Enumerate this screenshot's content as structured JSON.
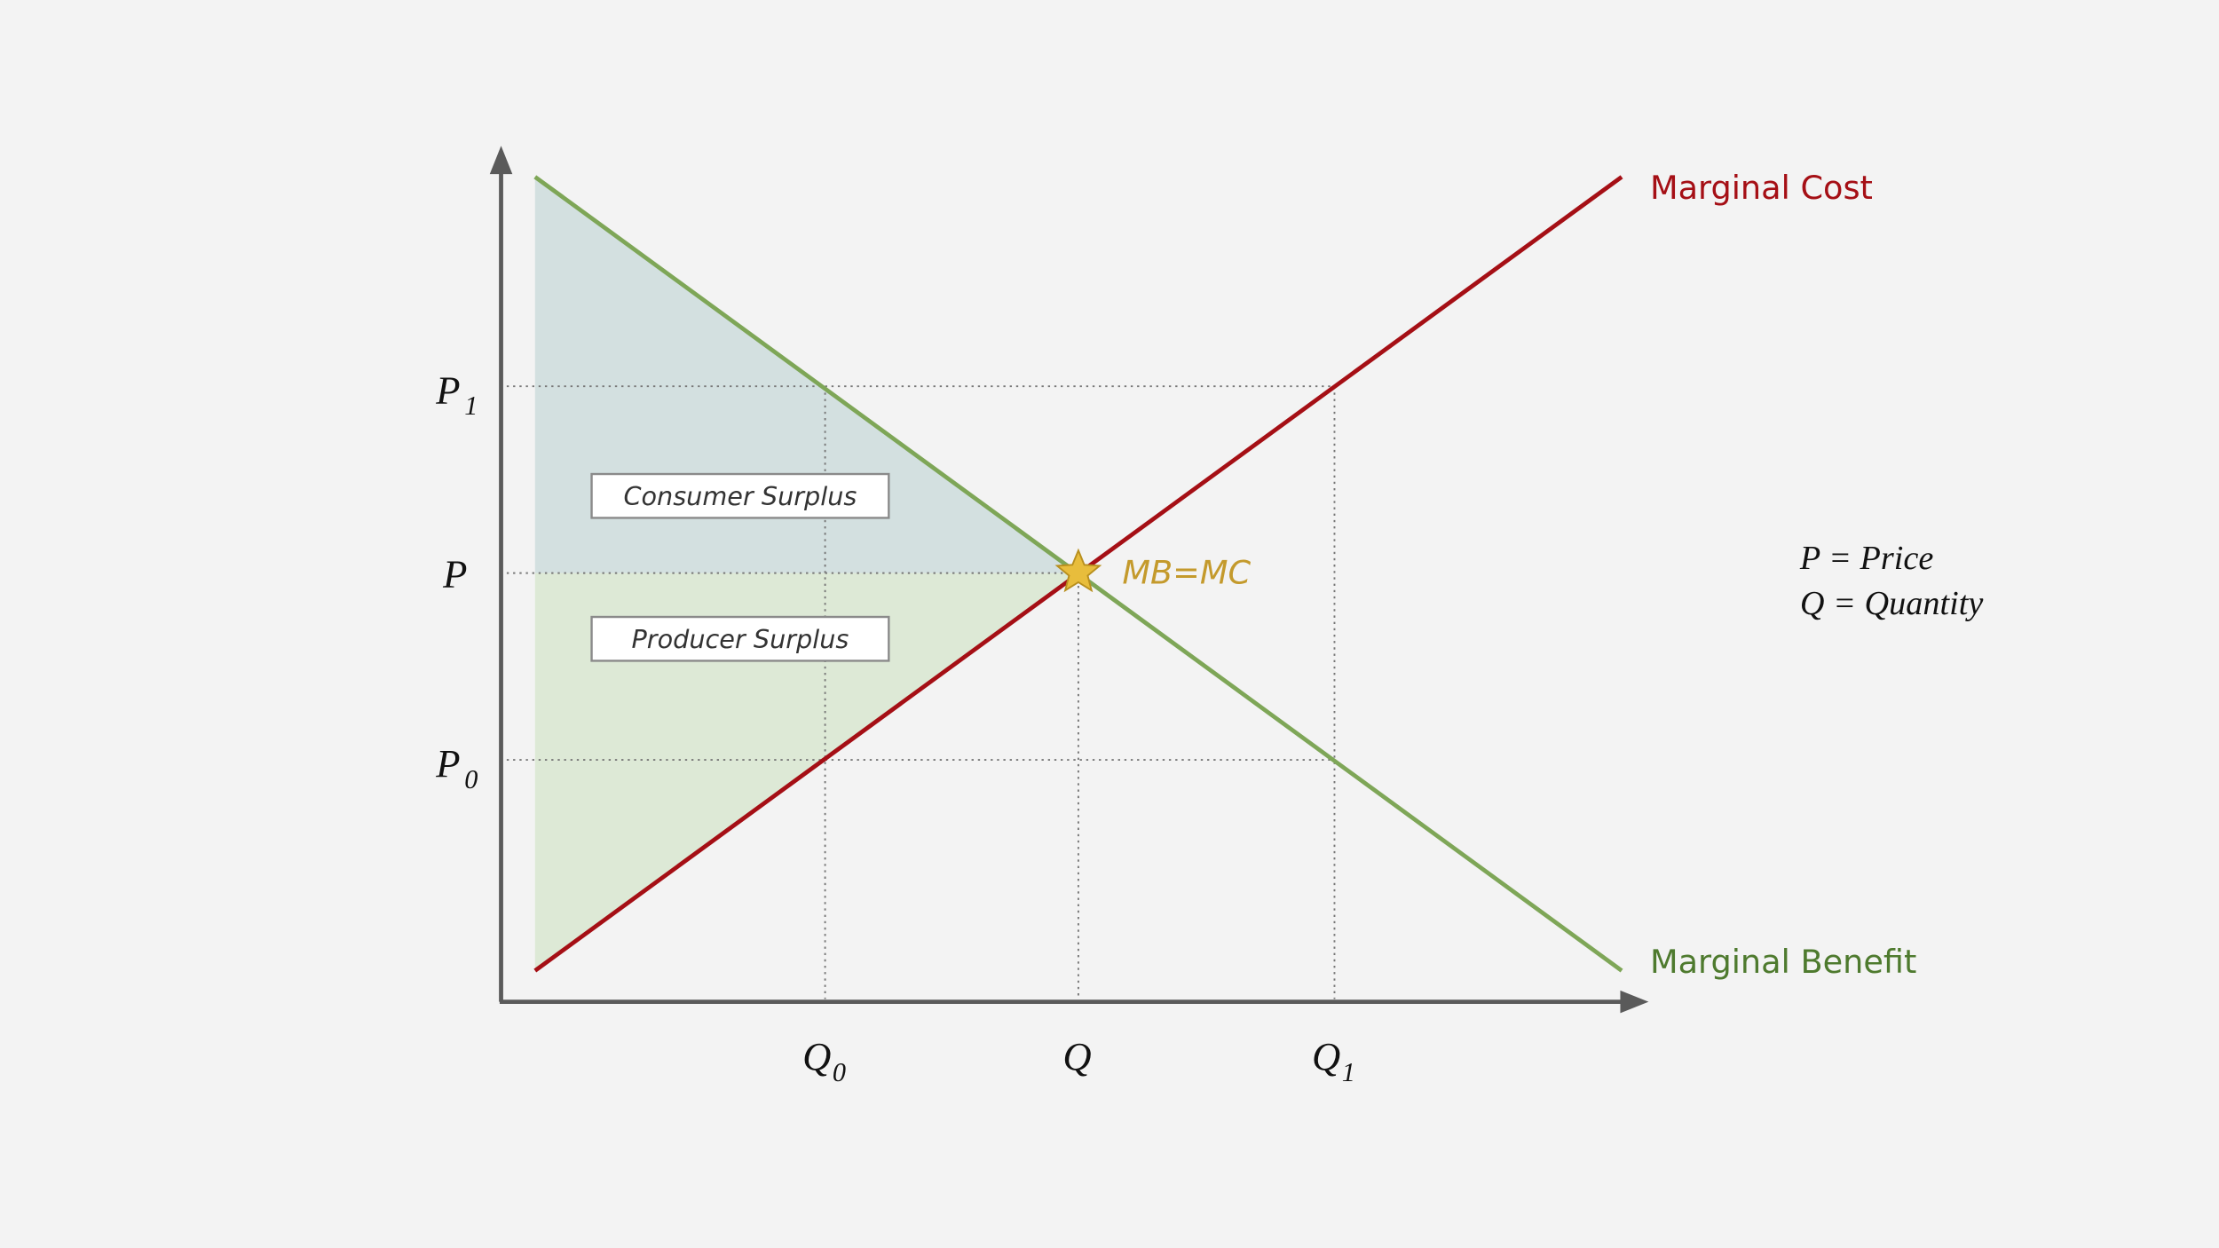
{
  "curves": {
    "marginal_cost": "Marginal Cost",
    "marginal_benefit": "Marginal Benefit"
  },
  "equilibrium": "MB=MC",
  "areas": {
    "consumer_surplus": "Consumer Surplus",
    "producer_surplus": "Producer Surplus"
  },
  "price_labels": [
    {
      "base": "P",
      "sub": "1"
    },
    {
      "base": "P"
    },
    {
      "base": "P",
      "sub": "0"
    }
  ],
  "quantity_labels": [
    {
      "base": "Q",
      "sub": "0"
    },
    {
      "base": "Q"
    },
    {
      "base": "Q",
      "sub": "1"
    }
  ],
  "legend": [
    "P = Price",
    "Q = Quantity"
  ]
}
